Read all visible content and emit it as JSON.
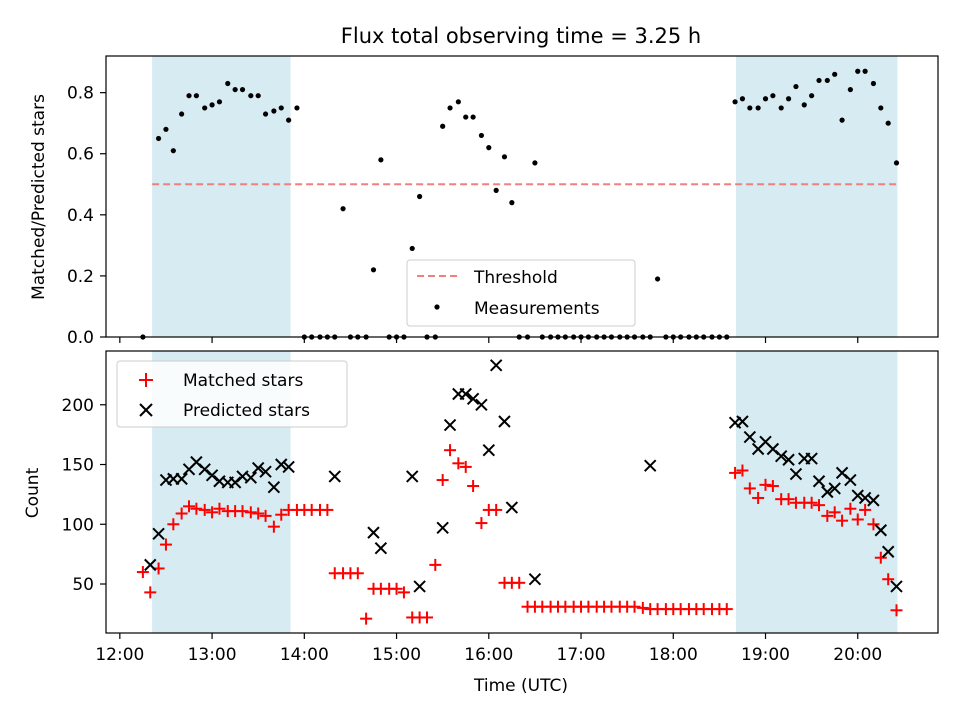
{
  "figure": {
    "title": "Flux total observing time = 3.25 h"
  },
  "chart_data": [
    {
      "type": "scatter",
      "title": "Flux total observing time = 3.25 h",
      "xlabel": "",
      "ylabel": "Matched/Predicted stars",
      "xlim": [
        11.85,
        20.87
      ],
      "ylim": [
        0.0,
        0.92
      ],
      "yticks": [
        0.0,
        0.2,
        0.4,
        0.6,
        0.8
      ],
      "ytick_labels": [
        "0.0",
        "0.2",
        "0.4",
        "0.6",
        "0.8"
      ],
      "grid": false,
      "legend_position": "lower center",
      "shaded_regions": [
        [
          12.35,
          13.85
        ],
        [
          18.68,
          20.43
        ]
      ],
      "threshold": {
        "name": "Threshold",
        "value": 0.5,
        "x_range": [
          12.35,
          20.43
        ],
        "color": "#f08080"
      },
      "series": [
        {
          "name": "Measurements",
          "color": "#000000",
          "x": [
            12.25,
            12.42,
            12.5,
            12.58,
            12.67,
            12.75,
            12.83,
            12.92,
            13.0,
            13.08,
            13.17,
            13.25,
            13.33,
            13.42,
            13.5,
            13.58,
            13.67,
            13.75,
            13.83,
            13.92,
            14.0,
            14.08,
            14.17,
            14.25,
            14.33,
            14.42,
            14.5,
            14.58,
            14.67,
            14.75,
            14.83,
            14.92,
            15.0,
            15.08,
            15.17,
            15.25,
            15.33,
            15.42,
            15.5,
            15.58,
            15.67,
            15.75,
            15.83,
            15.92,
            16.0,
            16.08,
            16.17,
            16.25,
            16.33,
            16.42,
            16.5,
            16.58,
            16.67,
            16.75,
            16.83,
            16.92,
            17.0,
            17.08,
            17.17,
            17.25,
            17.33,
            17.42,
            17.5,
            17.58,
            17.67,
            17.75,
            17.83,
            17.92,
            18.0,
            18.08,
            18.17,
            18.25,
            18.33,
            18.42,
            18.5,
            18.58,
            18.67,
            18.75,
            18.83,
            18.92,
            19.0,
            19.08,
            19.17,
            19.25,
            19.33,
            19.42,
            19.5,
            19.58,
            19.67,
            19.75,
            19.83,
            19.92,
            20.0,
            20.08,
            20.17,
            20.25,
            20.33,
            20.42
          ],
          "y": [
            0.0,
            0.65,
            0.68,
            0.61,
            0.73,
            0.79,
            0.79,
            0.75,
            0.76,
            0.77,
            0.83,
            0.81,
            0.81,
            0.79,
            0.79,
            0.73,
            0.74,
            0.75,
            0.71,
            0.75,
            0.0,
            0.0,
            0.0,
            0.0,
            0.0,
            0.42,
            0.0,
            0.0,
            0.0,
            0.22,
            0.58,
            0.0,
            0.0,
            0.0,
            0.29,
            0.46,
            0.0,
            0.0,
            0.69,
            0.75,
            0.77,
            0.72,
            0.72,
            0.66,
            0.62,
            0.48,
            0.59,
            0.44,
            0.0,
            0.0,
            0.57,
            0.0,
            0.0,
            0.0,
            0.0,
            0.0,
            0.0,
            0.0,
            0.0,
            0.0,
            0.0,
            0.0,
            0.0,
            0.0,
            0.0,
            0.0,
            0.19,
            0.0,
            0.0,
            0.0,
            0.0,
            0.0,
            0.0,
            0.0,
            0.0,
            0.0,
            0.77,
            0.78,
            0.75,
            0.75,
            0.78,
            0.79,
            0.75,
            0.78,
            0.82,
            0.76,
            0.79,
            0.84,
            0.84,
            0.86,
            0.71,
            0.81,
            0.87,
            0.87,
            0.83,
            0.75,
            0.7,
            0.57
          ]
        }
      ]
    },
    {
      "type": "scatter",
      "title": "",
      "xlabel": "Time (UTC)",
      "ylabel": "Count",
      "xlim": [
        11.85,
        20.87
      ],
      "ylim": [
        9,
        245
      ],
      "xticks": [
        12,
        13,
        14,
        15,
        16,
        17,
        18,
        19,
        20
      ],
      "xtick_labels": [
        "12:00",
        "13:00",
        "14:00",
        "15:00",
        "16:00",
        "17:00",
        "18:00",
        "19:00",
        "20:00"
      ],
      "yticks": [
        50,
        100,
        150,
        200
      ],
      "ytick_labels": [
        "50",
        "100",
        "150",
        "200"
      ],
      "grid": false,
      "legend_position": "upper left",
      "shaded_regions": [
        [
          12.35,
          13.85
        ],
        [
          18.68,
          20.43
        ]
      ],
      "series": [
        {
          "name": "Matched stars",
          "marker": "+",
          "color": "#ff0000",
          "x": [
            12.25,
            12.33,
            12.42,
            12.5,
            12.58,
            12.67,
            12.75,
            12.83,
            12.92,
            13.0,
            13.08,
            13.17,
            13.25,
            13.33,
            13.42,
            13.5,
            13.58,
            13.67,
            13.75,
            13.83,
            13.92,
            14.0,
            14.08,
            14.17,
            14.25,
            14.33,
            14.42,
            14.5,
            14.58,
            14.67,
            14.75,
            14.83,
            14.92,
            15.0,
            15.08,
            15.17,
            15.25,
            15.33,
            15.42,
            15.5,
            15.58,
            15.67,
            15.75,
            15.83,
            15.92,
            16.0,
            16.08,
            16.17,
            16.25,
            16.33,
            16.42,
            16.5,
            16.58,
            16.67,
            16.75,
            16.83,
            16.92,
            17.0,
            17.08,
            17.17,
            17.25,
            17.33,
            17.42,
            17.5,
            17.58,
            17.67,
            17.75,
            17.83,
            17.92,
            18.0,
            18.08,
            18.17,
            18.25,
            18.33,
            18.42,
            18.5,
            18.58,
            18.67,
            18.75,
            18.83,
            18.92,
            19.0,
            19.08,
            19.17,
            19.25,
            19.33,
            19.42,
            19.5,
            19.58,
            19.67,
            19.75,
            19.83,
            19.92,
            20.0,
            20.08,
            20.17,
            20.25,
            20.33,
            20.42
          ],
          "y": [
            60,
            43,
            63,
            83,
            100,
            109,
            115,
            113,
            112,
            110,
            113,
            111,
            111,
            111,
            110,
            109,
            107,
            98,
            108,
            112,
            112,
            112,
            112,
            112,
            112,
            59,
            59,
            59,
            59,
            21,
            46,
            46,
            46,
            46,
            43,
            22,
            22,
            22,
            66,
            137,
            162,
            151,
            148,
            132,
            101,
            112,
            112,
            51,
            51,
            51,
            31,
            31,
            31,
            31,
            31,
            31,
            31,
            31,
            31,
            31,
            31,
            31,
            31,
            31,
            31,
            30,
            29,
            29,
            29,
            29,
            29,
            29,
            29,
            29,
            29,
            29,
            29,
            143,
            145,
            130,
            122,
            133,
            132,
            121,
            121,
            118,
            118,
            118,
            116,
            107,
            110,
            103,
            113,
            104,
            112,
            100,
            72,
            54,
            28
          ]
        },
        {
          "name": "Predicted stars",
          "marker": "x",
          "color": "#000000",
          "x": [
            12.33,
            12.42,
            12.5,
            12.58,
            12.67,
            12.75,
            12.83,
            12.92,
            13.0,
            13.08,
            13.17,
            13.25,
            13.33,
            13.42,
            13.5,
            13.58,
            13.67,
            13.75,
            13.83,
            14.33,
            14.75,
            14.83,
            15.17,
            15.25,
            15.5,
            15.58,
            15.67,
            15.75,
            15.83,
            15.92,
            16.0,
            16.08,
            16.17,
            16.25,
            16.5,
            17.75,
            18.67,
            18.75,
            18.83,
            18.92,
            19.0,
            19.08,
            19.17,
            19.25,
            19.33,
            19.42,
            19.5,
            19.58,
            19.67,
            19.75,
            19.83,
            19.92,
            20.0,
            20.08,
            20.17,
            20.25,
            20.33,
            20.42
          ],
          "y": [
            66,
            92,
            137,
            138,
            138,
            146,
            152,
            146,
            141,
            136,
            135,
            135,
            140,
            139,
            147,
            144,
            131,
            150,
            148,
            140,
            93,
            80,
            140,
            48,
            97,
            183,
            209,
            209,
            205,
            200,
            162,
            233,
            186,
            114,
            54,
            149,
            185,
            186,
            173,
            163,
            169,
            163,
            157,
            154,
            142,
            155,
            155,
            136,
            127,
            130,
            143,
            137,
            124,
            122,
            120,
            95,
            77,
            48
          ]
        }
      ]
    }
  ],
  "legend_top": {
    "threshold_label": "Threshold",
    "measurements_label": "Measurements"
  },
  "legend_bottom": {
    "matched_label": "Matched stars",
    "predicted_label": "Predicted stars"
  },
  "colors": {
    "shade": "#add8e6",
    "matched": "#ff0000",
    "predicted": "#000000",
    "threshold": "#f08080"
  }
}
